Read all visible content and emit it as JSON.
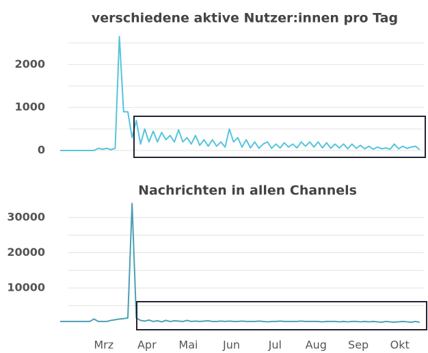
{
  "chart_data": [
    {
      "type": "line",
      "title": "verschiedene aktive Nutzer:innen pro Tag",
      "color": "#55c4dc",
      "values": [
        0,
        0,
        0,
        0,
        0,
        0,
        0,
        0,
        0,
        50,
        30,
        50,
        20,
        50,
        2650,
        900,
        900,
        300,
        700,
        150,
        500,
        200,
        450,
        200,
        420,
        250,
        350,
        200,
        480,
        200,
        300,
        150,
        350,
        120,
        250,
        100,
        250,
        100,
        200,
        80,
        500,
        200,
        300,
        80,
        250,
        60,
        200,
        50,
        150,
        200,
        50,
        150,
        60,
        180,
        80,
        150,
        60,
        200,
        100,
        200,
        80,
        200,
        60,
        180,
        50,
        150,
        60,
        150,
        40,
        150,
        50,
        120,
        40,
        100,
        30,
        80,
        40,
        60,
        30,
        150,
        40,
        100,
        50,
        80,
        100,
        20
      ],
      "xlim": [
        0,
        86
      ],
      "ylim": [
        0,
        2800
      ],
      "yticks": [
        0,
        1000,
        2000
      ],
      "minor_yticks": [
        500,
        1500,
        2500
      ],
      "grid": true
    },
    {
      "type": "line",
      "title": "Nachrichten in allen Channels",
      "color": "#4a9fb3",
      "values": [
        500,
        500,
        500,
        500,
        500,
        500,
        500,
        500,
        1200,
        500,
        500,
        500,
        800,
        1000,
        1200,
        1300,
        1500,
        34000,
        1500,
        800,
        600,
        900,
        500,
        700,
        400,
        800,
        500,
        700,
        600,
        500,
        800,
        500,
        600,
        500,
        600,
        700,
        500,
        500,
        600,
        500,
        600,
        500,
        500,
        600,
        500,
        500,
        500,
        600,
        500,
        400,
        500,
        500,
        600,
        500,
        500,
        500,
        500,
        600,
        500,
        500,
        500,
        500,
        400,
        500,
        500,
        500,
        400,
        500,
        400,
        500,
        500,
        400,
        500,
        400,
        500,
        400,
        300,
        500,
        400,
        300,
        400,
        500,
        400,
        300,
        500,
        300
      ],
      "xlim": [
        0,
        86
      ],
      "ylim": [
        0,
        34000
      ],
      "yticks": [
        10000,
        20000,
        30000
      ],
      "minor_yticks": [
        5000,
        15000,
        25000
      ],
      "grid": true,
      "xticks": [
        {
          "value": 10.3,
          "label": "Mrz"
        },
        {
          "value": 20.5,
          "label": "Apr"
        },
        {
          "value": 30.3,
          "label": "Mai"
        },
        {
          "value": 40.5,
          "label": "Jun"
        },
        {
          "value": 50.8,
          "label": "Jul"
        },
        {
          "value": 60.5,
          "label": "Aug"
        },
        {
          "value": 70.5,
          "label": "Sep"
        },
        {
          "value": 80.3,
          "label": "Okt"
        }
      ]
    }
  ]
}
